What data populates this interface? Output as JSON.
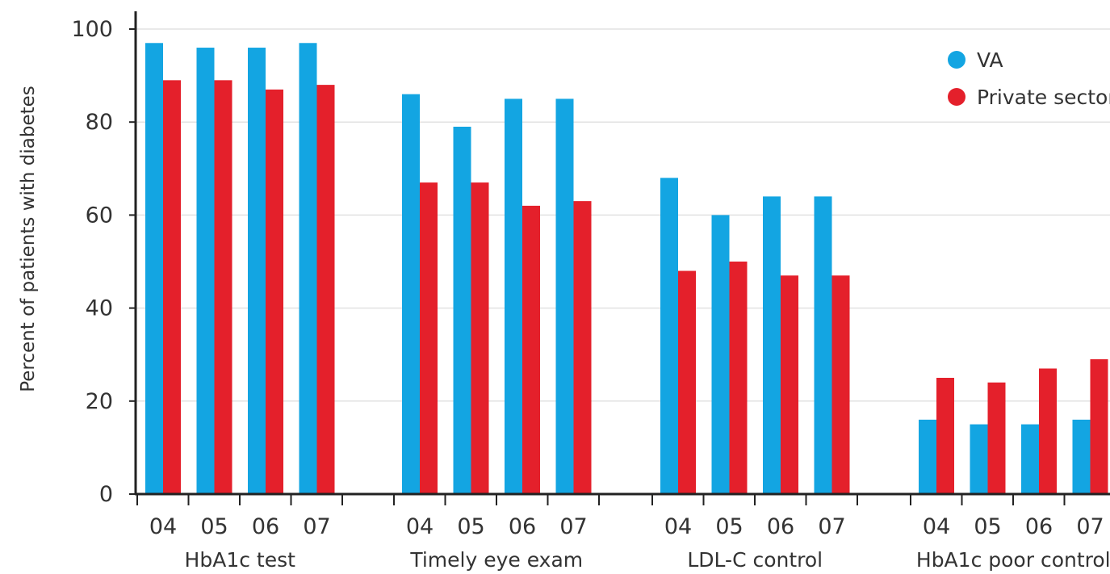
{
  "chart_data": {
    "type": "bar",
    "ylabel": "Percent of patients with diabetes",
    "ylim": [
      0,
      100
    ],
    "yticks": [
      0,
      20,
      40,
      60,
      80,
      100
    ],
    "grid": true,
    "legend_position": "top-right",
    "groups": [
      {
        "label": "HbA1c test",
        "years": [
          "04",
          "05",
          "06",
          "07"
        ]
      },
      {
        "label": "Timely eye exam",
        "years": [
          "04",
          "05",
          "06",
          "07"
        ]
      },
      {
        "label": "LDL-C control",
        "years": [
          "04",
          "05",
          "06",
          "07"
        ]
      },
      {
        "label": "HbA1c poor control",
        "years": [
          "04",
          "05",
          "06",
          "07"
        ]
      }
    ],
    "series": [
      {
        "name": "VA",
        "color": "#13A5E2",
        "values": [
          [
            97,
            96,
            96,
            97
          ],
          [
            86,
            79,
            85,
            85
          ],
          [
            68,
            60,
            64,
            64
          ],
          [
            16,
            15,
            15,
            16
          ]
        ]
      },
      {
        "name": "Private sector",
        "color": "#E4202B",
        "values": [
          [
            89,
            89,
            87,
            88
          ],
          [
            67,
            67,
            62,
            63
          ],
          [
            48,
            50,
            47,
            47
          ],
          [
            25,
            24,
            27,
            29
          ]
        ]
      }
    ]
  }
}
